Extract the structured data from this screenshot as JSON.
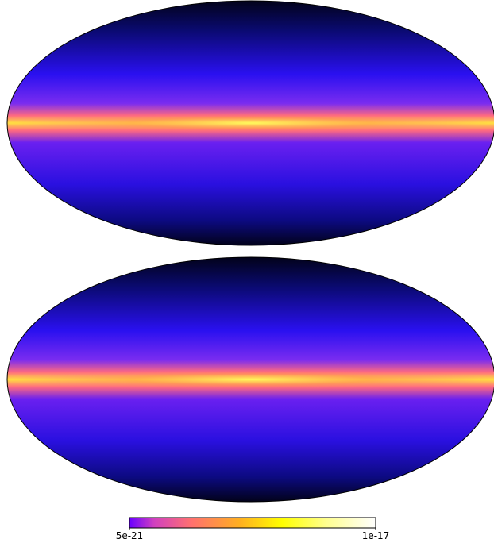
{
  "colorbar": {
    "scale": "log",
    "lim": [
      5e-21,
      1e-17
    ],
    "ticks": [
      5e-21,
      1e-17
    ]
  }
}
